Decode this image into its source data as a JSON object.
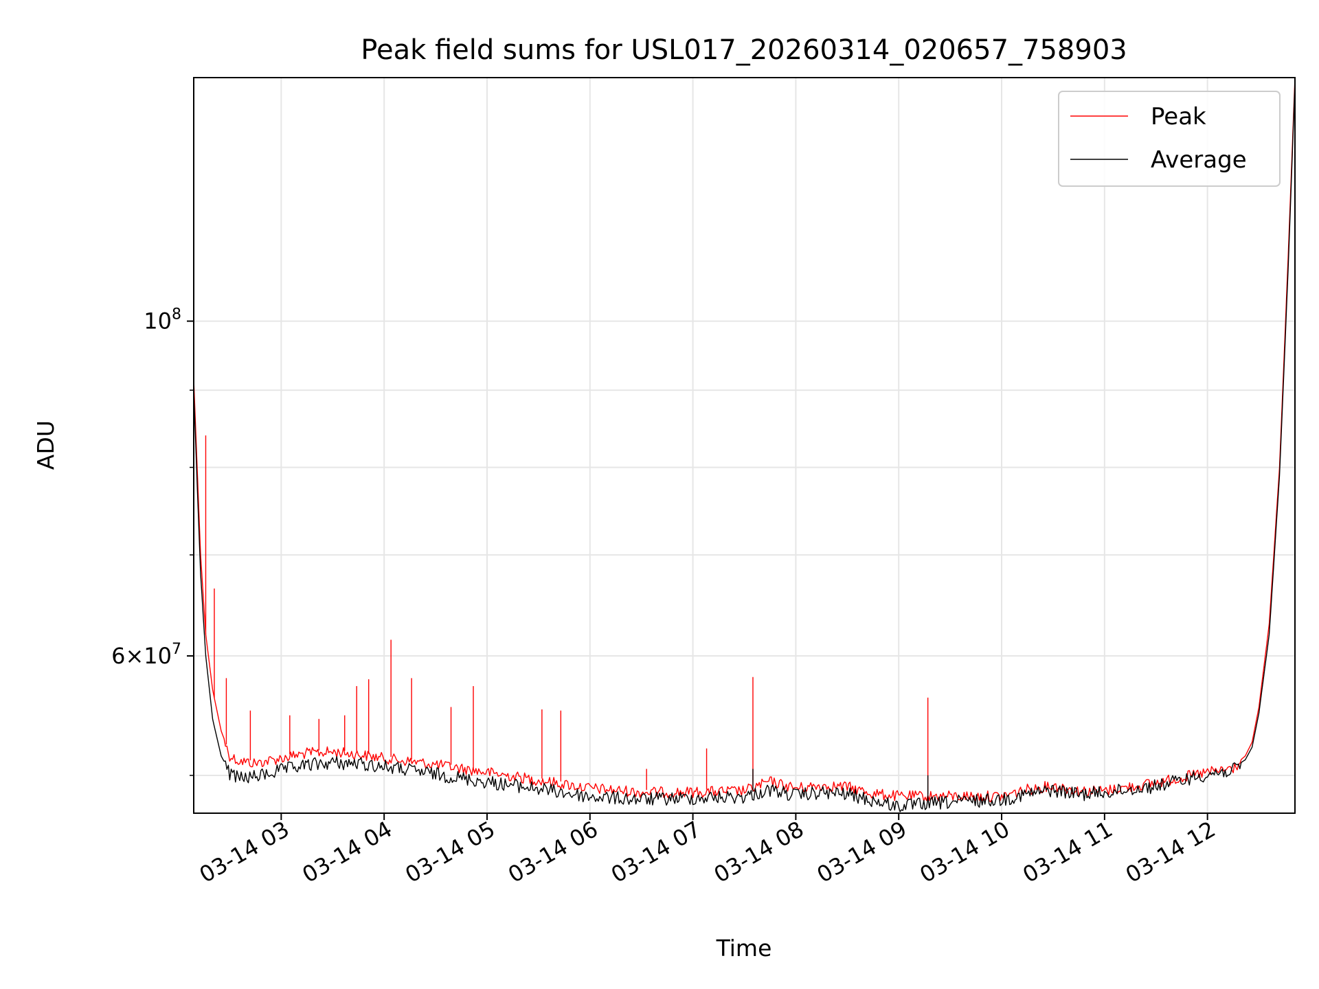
{
  "chart_data": {
    "type": "line",
    "title": "Peak field sums for USL017_20260314_020657_758903",
    "xlabel": "Time",
    "ylabel": "ADU",
    "x_scale": "time",
    "y_scale": "log",
    "xlim": [
      "2026-03-14 02:09",
      "2026-03-14 12:51"
    ],
    "ylim": [
      47200000,
      145000000
    ],
    "x_ticks": [
      {
        "value": "2026-03-14 03:00",
        "label": "03-14 03"
      },
      {
        "value": "2026-03-14 04:00",
        "label": "03-14 04"
      },
      {
        "value": "2026-03-14 05:00",
        "label": "03-14 05"
      },
      {
        "value": "2026-03-14 06:00",
        "label": "03-14 06"
      },
      {
        "value": "2026-03-14 07:00",
        "label": "03-14 07"
      },
      {
        "value": "2026-03-14 08:00",
        "label": "03-14 08"
      },
      {
        "value": "2026-03-14 09:00",
        "label": "03-14 09"
      },
      {
        "value": "2026-03-14 10:00",
        "label": "03-14 10"
      },
      {
        "value": "2026-03-14 11:00",
        "label": "03-14 11"
      },
      {
        "value": "2026-03-14 12:00",
        "label": "03-14 12"
      }
    ],
    "y_major_ticks": [
      {
        "value": 100000000,
        "base": "10",
        "exp": "8"
      },
      {
        "value": 60000000,
        "mant": "6",
        "base": "10",
        "exp": "7"
      }
    ],
    "y_minor_ticks": [
      50000000,
      70000000,
      80000000,
      90000000
    ],
    "grid": true,
    "legend_position": "top-right",
    "series": [
      {
        "name": "Peak",
        "color": "#ff0000",
        "x": [
          "2026-03-14 02:09",
          "2026-03-14 02:11",
          "2026-03-14 02:13",
          "2026-03-14 02:16",
          "2026-03-14 02:20",
          "2026-03-14 02:25",
          "2026-03-14 02:30",
          "2026-03-14 02:35",
          "2026-03-14 02:45",
          "2026-03-14 03:00",
          "2026-03-14 03:15",
          "2026-03-14 03:30",
          "2026-03-14 03:45",
          "2026-03-14 04:00",
          "2026-03-14 04:30",
          "2026-03-14 05:00",
          "2026-03-14 05:30",
          "2026-03-14 06:00",
          "2026-03-14 06:30",
          "2026-03-14 07:00",
          "2026-03-14 07:30",
          "2026-03-14 07:45",
          "2026-03-14 08:00",
          "2026-03-14 08:15",
          "2026-03-14 08:30",
          "2026-03-14 08:45",
          "2026-03-14 09:00",
          "2026-03-14 09:30",
          "2026-03-14 10:00",
          "2026-03-14 10:15",
          "2026-03-14 10:30",
          "2026-03-14 10:45",
          "2026-03-14 11:00",
          "2026-03-14 11:30",
          "2026-03-14 12:00",
          "2026-03-14 12:15",
          "2026-03-14 12:22",
          "2026-03-14 12:26",
          "2026-03-14 12:30",
          "2026-03-14 12:36",
          "2026-03-14 12:42",
          "2026-03-14 12:47",
          "2026-03-14 12:51"
        ],
        "values": [
          91500000,
          80000000,
          70000000,
          62000000,
          57000000,
          53500000,
          51700000,
          51300000,
          51100000,
          51500000,
          51900000,
          52000000,
          51800000,
          51500000,
          51000000,
          50400000,
          49800000,
          49200000,
          48900000,
          48900000,
          49000000,
          49700000,
          49200000,
          49400000,
          49300000,
          48800000,
          48600000,
          48600000,
          48600000,
          49100000,
          49400000,
          49000000,
          49000000,
          49600000,
          50400000,
          50700000,
          51500000,
          52600000,
          55500000,
          63000000,
          80000000,
          110000000,
          145000000
        ],
        "spikes": [
          {
            "x": "2026-03-14 02:16",
            "value": 84000000
          },
          {
            "x": "2026-03-14 02:21",
            "value": 66500000
          },
          {
            "x": "2026-03-14 02:28",
            "value": 58000000
          },
          {
            "x": "2026-03-14 02:42",
            "value": 55200000
          },
          {
            "x": "2026-03-14 03:05",
            "value": 54800000
          },
          {
            "x": "2026-03-14 03:22",
            "value": 54500000
          },
          {
            "x": "2026-03-14 03:37",
            "value": 54800000
          },
          {
            "x": "2026-03-14 03:44",
            "value": 57300000
          },
          {
            "x": "2026-03-14 03:51",
            "value": 57900000
          },
          {
            "x": "2026-03-14 04:04",
            "value": 61500000
          },
          {
            "x": "2026-03-14 04:16",
            "value": 58000000
          },
          {
            "x": "2026-03-14 04:39",
            "value": 55500000
          },
          {
            "x": "2026-03-14 04:52",
            "value": 57300000
          },
          {
            "x": "2026-03-14 05:32",
            "value": 55300000
          },
          {
            "x": "2026-03-14 05:43",
            "value": 55200000
          },
          {
            "x": "2026-03-14 06:33",
            "value": 50500000
          },
          {
            "x": "2026-03-14 07:08",
            "value": 52100000
          },
          {
            "x": "2026-03-14 07:35",
            "value": 58100000
          },
          {
            "x": "2026-03-14 09:17",
            "value": 56300000
          }
        ]
      },
      {
        "name": "Average",
        "color": "#000000",
        "x": [
          "2026-03-14 02:09",
          "2026-03-14 02:11",
          "2026-03-14 02:13",
          "2026-03-14 02:16",
          "2026-03-14 02:20",
          "2026-03-14 02:25",
          "2026-03-14 02:30",
          "2026-03-14 02:35",
          "2026-03-14 02:45",
          "2026-03-14 03:00",
          "2026-03-14 03:15",
          "2026-03-14 03:30",
          "2026-03-14 03:45",
          "2026-03-14 04:00",
          "2026-03-14 04:30",
          "2026-03-14 05:00",
          "2026-03-14 05:30",
          "2026-03-14 06:00",
          "2026-03-14 06:30",
          "2026-03-14 07:00",
          "2026-03-14 07:30",
          "2026-03-14 07:45",
          "2026-03-14 08:00",
          "2026-03-14 08:15",
          "2026-03-14 08:30",
          "2026-03-14 08:45",
          "2026-03-14 09:00",
          "2026-03-14 09:30",
          "2026-03-14 10:00",
          "2026-03-14 10:15",
          "2026-03-14 10:30",
          "2026-03-14 10:45",
          "2026-03-14 11:00",
          "2026-03-14 11:30",
          "2026-03-14 12:00",
          "2026-03-14 12:15",
          "2026-03-14 12:22",
          "2026-03-14 12:26",
          "2026-03-14 12:30",
          "2026-03-14 12:36",
          "2026-03-14 12:42",
          "2026-03-14 12:47",
          "2026-03-14 12:51"
        ],
        "values": [
          90000000,
          78000000,
          68000000,
          60000000,
          54500000,
          51500000,
          50300000,
          50000000,
          50100000,
          50600000,
          51000000,
          51200000,
          51100000,
          50900000,
          50300000,
          49700000,
          49200000,
          48600000,
          48400000,
          48500000,
          48600000,
          49100000,
          48700000,
          48900000,
          48800000,
          48300000,
          47900000,
          48200000,
          48400000,
          48800000,
          49100000,
          48800000,
          48900000,
          49400000,
          50300000,
          50600000,
          51200000,
          52200000,
          55000000,
          62000000,
          79000000,
          108000000,
          144000000
        ],
        "spikes": [
          {
            "x": "2026-03-14 07:35",
            "value": 50500000
          },
          {
            "x": "2026-03-14 09:17",
            "value": 50000000
          }
        ]
      }
    ]
  }
}
